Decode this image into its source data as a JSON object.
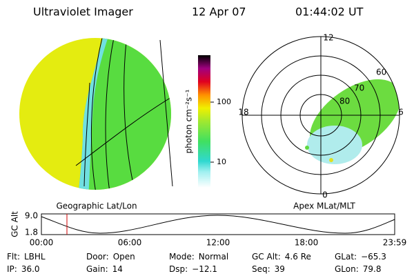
{
  "header": {
    "instrument": "Ultraviolet Imager",
    "date": "12 Apr 07",
    "time": "01:44:02 UT"
  },
  "colorbar": {
    "unit_label": "photon cm⁻²s⁻¹",
    "tick_high": "100",
    "tick_low": "10"
  },
  "polar": {
    "mlt_top": "12",
    "mlt_left": "18",
    "mlt_right": "6",
    "mlt_bottom": "0",
    "mlat_labels": [
      "60",
      "70",
      "80"
    ]
  },
  "panel_labels": {
    "left": "Geographic Lat/Lon",
    "right": "Apex MLat/MLT"
  },
  "altitude_plot": {
    "y_label": "GC Alt",
    "y_tick_high": "9.0",
    "y_tick_low": "1.8",
    "x_ticks": [
      "00:00",
      "06:00",
      "12:00",
      "18:00",
      "23:59"
    ]
  },
  "info": [
    [
      [
        "Flt:",
        "LBHL"
      ],
      [
        "Door:",
        "Open"
      ],
      [
        "Mode:",
        "Normal"
      ],
      [
        "GC Alt:",
        "4.6 Re"
      ],
      [
        "GLat:",
        "−65.3"
      ]
    ],
    [
      [
        "IP:",
        "36.0"
      ],
      [
        "Gain:",
        "14"
      ],
      [
        "Dsp:",
        "−12.1"
      ],
      [
        "Seq:",
        "39"
      ],
      [
        "GLon:",
        "79.8"
      ]
    ]
  ]
}
